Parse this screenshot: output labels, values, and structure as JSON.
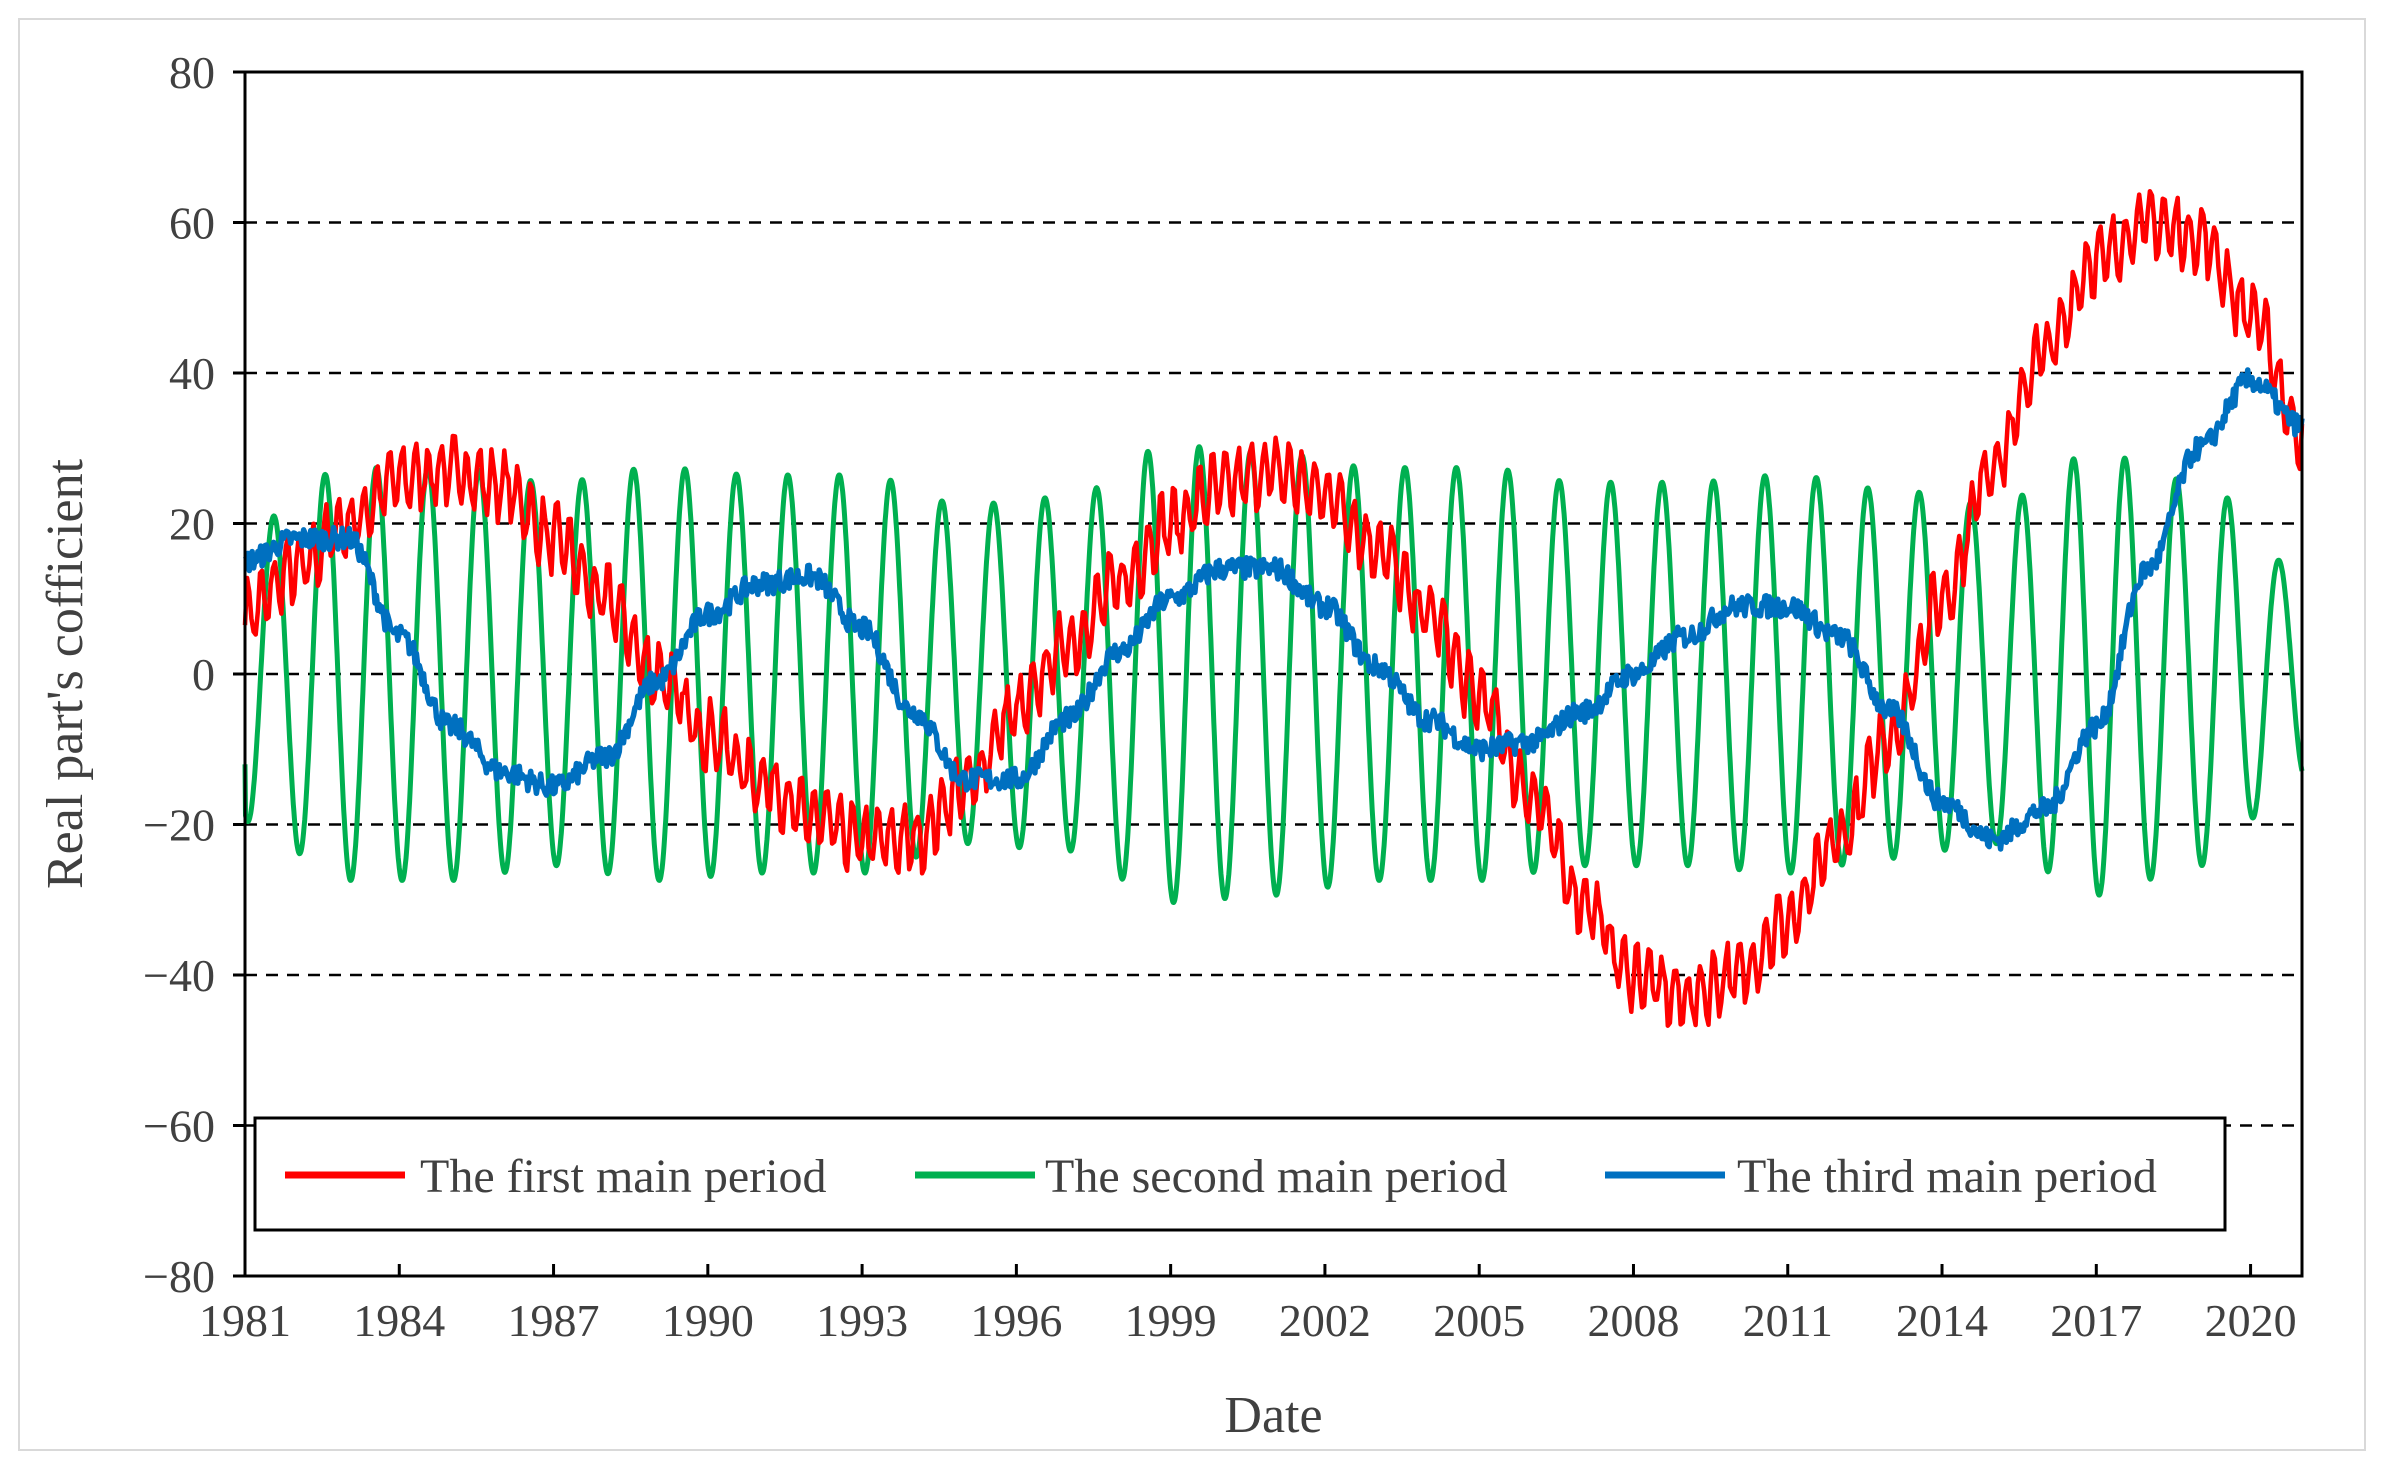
{
  "chart_data": {
    "type": "line",
    "title": "",
    "xlabel": "Date",
    "ylabel": "Real part's cofficient",
    "xlim": [
      1981,
      2021
    ],
    "ylim": [
      -80,
      80
    ],
    "x_ticks": [
      "1981",
      "1984",
      "1987",
      "1990",
      "1993",
      "1996",
      "1999",
      "2002",
      "2005",
      "2008",
      "2011",
      "2014",
      "2017",
      "2020"
    ],
    "y_ticks": [
      "80",
      "60",
      "40",
      "20",
      "0",
      "−20",
      "−40",
      "−60",
      "−80"
    ],
    "y_tick_values": [
      80,
      60,
      40,
      20,
      0,
      -20,
      -40,
      -60,
      -80
    ],
    "grid": "horizontal dashed",
    "legend_position": "bottom",
    "series": [
      {
        "name": "The first main period",
        "color": "#ff0000",
        "x": [
          1981,
          1982,
          1983,
          1984,
          1985,
          1986,
          1987,
          1988,
          1989,
          1990,
          1991,
          1992,
          1993,
          1994,
          1995,
          1996,
          1997,
          1998,
          1999,
          2000,
          2001,
          2002,
          2003,
          2004,
          2005,
          2006,
          2007,
          2008,
          2009,
          2010,
          2011,
          2012,
          2013,
          2014,
          2015,
          2016,
          2017,
          2018,
          2019,
          2020,
          2021
        ],
        "values": [
          8,
          14,
          20,
          26,
          27,
          25,
          18,
          10,
          0,
          -8,
          -14,
          -19,
          -22,
          -22,
          -15,
          -5,
          4,
          12,
          20,
          25,
          27,
          24,
          17,
          8,
          -3,
          -16,
          -30,
          -40,
          -43,
          -40,
          -33,
          -22,
          -8,
          10,
          28,
          43,
          55,
          60,
          58,
          48,
          32
        ],
        "oscillation_amplitude": 4
      },
      {
        "name": "The second main period",
        "color": "#00b050",
        "x": [
          1981,
          1983,
          1985,
          1987,
          1989,
          1991,
          1993,
          1995,
          1997,
          1999,
          2001,
          2003,
          2005,
          2007,
          2009,
          2011,
          2013,
          2015,
          2017,
          2019,
          2021
        ],
        "amplitude": [
          20,
          28,
          28,
          26,
          28,
          27,
          27,
          23,
          24,
          31,
          30,
          28,
          28,
          26,
          26,
          27,
          25,
          23,
          30,
          26,
          14
        ],
        "cycles_per_year": 1.0,
        "phase_start": -12
      },
      {
        "name": "The third main period",
        "color": "#0070c0",
        "x": [
          1981,
          1982,
          1983,
          1984,
          1985,
          1986,
          1987,
          1988,
          1989,
          1990,
          1991,
          1992,
          1993,
          1994,
          1995,
          1996,
          1997,
          1998,
          1999,
          2000,
          2001,
          2002,
          2003,
          2004,
          2005,
          2006,
          2007,
          2008,
          2009,
          2010,
          2011,
          2012,
          2013,
          2014,
          2015,
          2016,
          2017,
          2018,
          2019,
          2020,
          2021
        ],
        "values": [
          15,
          18,
          18,
          5,
          -7,
          -13,
          -15,
          -11,
          -1,
          8,
          12,
          13,
          6,
          -5,
          -14,
          -14,
          -6,
          3,
          10,
          14,
          14,
          9,
          1,
          -6,
          -10,
          -9,
          -5,
          0,
          5,
          9,
          9,
          5,
          -5,
          -17,
          -22,
          -18,
          -7,
          14,
          30,
          39,
          33
        ],
        "noise_amplitude": 1.5
      }
    ]
  }
}
